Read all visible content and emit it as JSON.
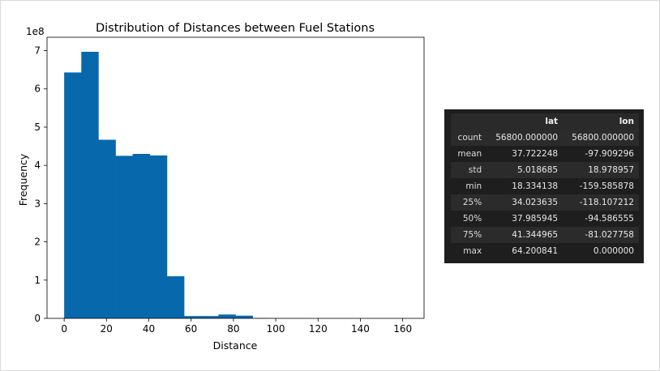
{
  "chart_data": {
    "type": "bar",
    "title": "Distribution of Distances between Fuel Stations",
    "xlabel": "Distance",
    "ylabel": "Frequency",
    "y_scale_note": "1e8",
    "xlim": [
      -8.1,
      170.1
    ],
    "ylim": [
      0,
      7.35
    ],
    "x_ticks": [
      0,
      20,
      40,
      60,
      80,
      100,
      120,
      140,
      160
    ],
    "y_ticks": [
      0,
      1,
      2,
      3,
      4,
      5,
      6,
      7
    ],
    "bin_edges": [
      0,
      8.1,
      16.2,
      24.3,
      32.4,
      40.5,
      48.6,
      56.7,
      64.8,
      72.9,
      81.0,
      89.1,
      97.2,
      105.3,
      113.4,
      121.5,
      129.6,
      137.7,
      145.8,
      153.9,
      162.0
    ],
    "values": [
      6.43,
      6.97,
      4.67,
      4.25,
      4.3,
      4.26,
      1.1,
      0.06,
      0.06,
      0.1,
      0.07,
      0.01,
      0.003,
      0.002,
      0.001,
      0.001,
      0.001,
      0.001,
      0.0005,
      0.0005
    ],
    "bar_color": "#0868ac",
    "grid": false,
    "legend": "none"
  },
  "stats_table": {
    "columns": [
      "",
      "lat",
      "lon"
    ],
    "rows": [
      {
        "label": "count",
        "lat": "56800.000000",
        "lon": "56800.000000"
      },
      {
        "label": "mean",
        "lat": "37.722248",
        "lon": "-97.909296"
      },
      {
        "label": "std",
        "lat": "5.018685",
        "lon": "18.978957"
      },
      {
        "label": "min",
        "lat": "18.334138",
        "lon": "-159.585878"
      },
      {
        "label": "25%",
        "lat": "34.023635",
        "lon": "-118.107212"
      },
      {
        "label": "50%",
        "lat": "37.985945",
        "lon": "-94.586555"
      },
      {
        "label": "75%",
        "lat": "41.344965",
        "lon": "-81.027758"
      },
      {
        "label": "max",
        "lat": "64.200841",
        "lon": "0.000000"
      }
    ]
  }
}
